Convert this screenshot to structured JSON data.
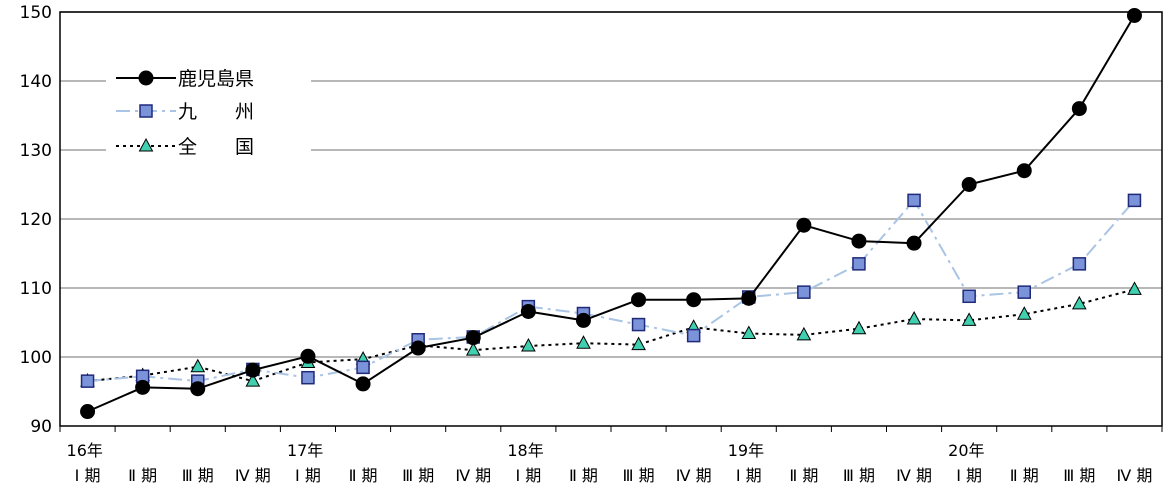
{
  "chart_data": {
    "type": "line",
    "categories": [
      "16年 Ⅰ期",
      "Ⅱ期",
      "Ⅲ期",
      "Ⅳ期",
      "17年 Ⅰ期",
      "Ⅱ期",
      "Ⅲ期",
      "Ⅳ期",
      "18年 Ⅰ期",
      "Ⅱ期",
      "Ⅲ期",
      "Ⅳ期",
      "19年 Ⅰ期",
      "Ⅱ期",
      "Ⅲ期",
      "Ⅳ期",
      "20年 Ⅰ期",
      "Ⅱ期",
      "Ⅲ期",
      "Ⅳ期"
    ],
    "x_ticks": [
      {
        "year": "16年",
        "quarter": "Ⅰ 期"
      },
      {
        "year": "",
        "quarter": "Ⅱ 期"
      },
      {
        "year": "",
        "quarter": "Ⅲ 期"
      },
      {
        "year": "",
        "quarter": "Ⅳ 期"
      },
      {
        "year": "17年",
        "quarter": "Ⅰ 期"
      },
      {
        "year": "",
        "quarter": "Ⅱ 期"
      },
      {
        "year": "",
        "quarter": "Ⅲ 期"
      },
      {
        "year": "",
        "quarter": "Ⅳ 期"
      },
      {
        "year": "18年",
        "quarter": "Ⅰ 期"
      },
      {
        "year": "",
        "quarter": "Ⅱ 期"
      },
      {
        "year": "",
        "quarter": "Ⅲ 期"
      },
      {
        "year": "",
        "quarter": "Ⅳ 期"
      },
      {
        "year": "19年",
        "quarter": "Ⅰ 期"
      },
      {
        "year": "",
        "quarter": "Ⅱ 期"
      },
      {
        "year": "",
        "quarter": "Ⅲ 期"
      },
      {
        "year": "",
        "quarter": "Ⅳ 期"
      },
      {
        "year": "20年",
        "quarter": "Ⅰ 期"
      },
      {
        "year": "",
        "quarter": "Ⅱ 期"
      },
      {
        "year": "",
        "quarter": "Ⅲ 期"
      },
      {
        "year": "",
        "quarter": "Ⅳ 期"
      }
    ],
    "series": [
      {
        "name": "鹿児島県",
        "marker": "circle",
        "line_style": "solid",
        "color": "#000000",
        "values": [
          92.1,
          95.6,
          95.4,
          98.1,
          100.1,
          96.1,
          101.3,
          102.8,
          106.6,
          105.3,
          108.3,
          108.3,
          108.5,
          119.1,
          116.8,
          116.5,
          125.0,
          127.0,
          136.0,
          149.5
        ]
      },
      {
        "name": "九　　州",
        "marker": "square",
        "line_style": "dashdot",
        "color": "#a9c4e4",
        "marker_fill": "#7b93d8",
        "marker_stroke": "#1f2a7a",
        "values": [
          96.5,
          97.2,
          96.5,
          98.2,
          97.0,
          98.5,
          102.5,
          102.9,
          107.3,
          106.3,
          104.7,
          103.1,
          108.7,
          109.4,
          113.5,
          122.7,
          108.8,
          109.4,
          113.5,
          122.7
        ]
      },
      {
        "name": "全　　国",
        "marker": "triangle",
        "line_style": "dotted",
        "color": "#000000",
        "marker_fill": "#40d0b0",
        "values": [
          96.5,
          97.3,
          98.6,
          96.5,
          99.2,
          99.7,
          101.7,
          101.0,
          101.6,
          102.0,
          101.8,
          104.3,
          103.4,
          103.2,
          104.1,
          105.5,
          105.3,
          106.2,
          107.7,
          109.8
        ]
      }
    ],
    "ylim": [
      90,
      150
    ],
    "yticks": [
      90,
      100,
      110,
      120,
      130,
      140,
      150
    ],
    "grid": true,
    "legend_placement": "top-left"
  }
}
